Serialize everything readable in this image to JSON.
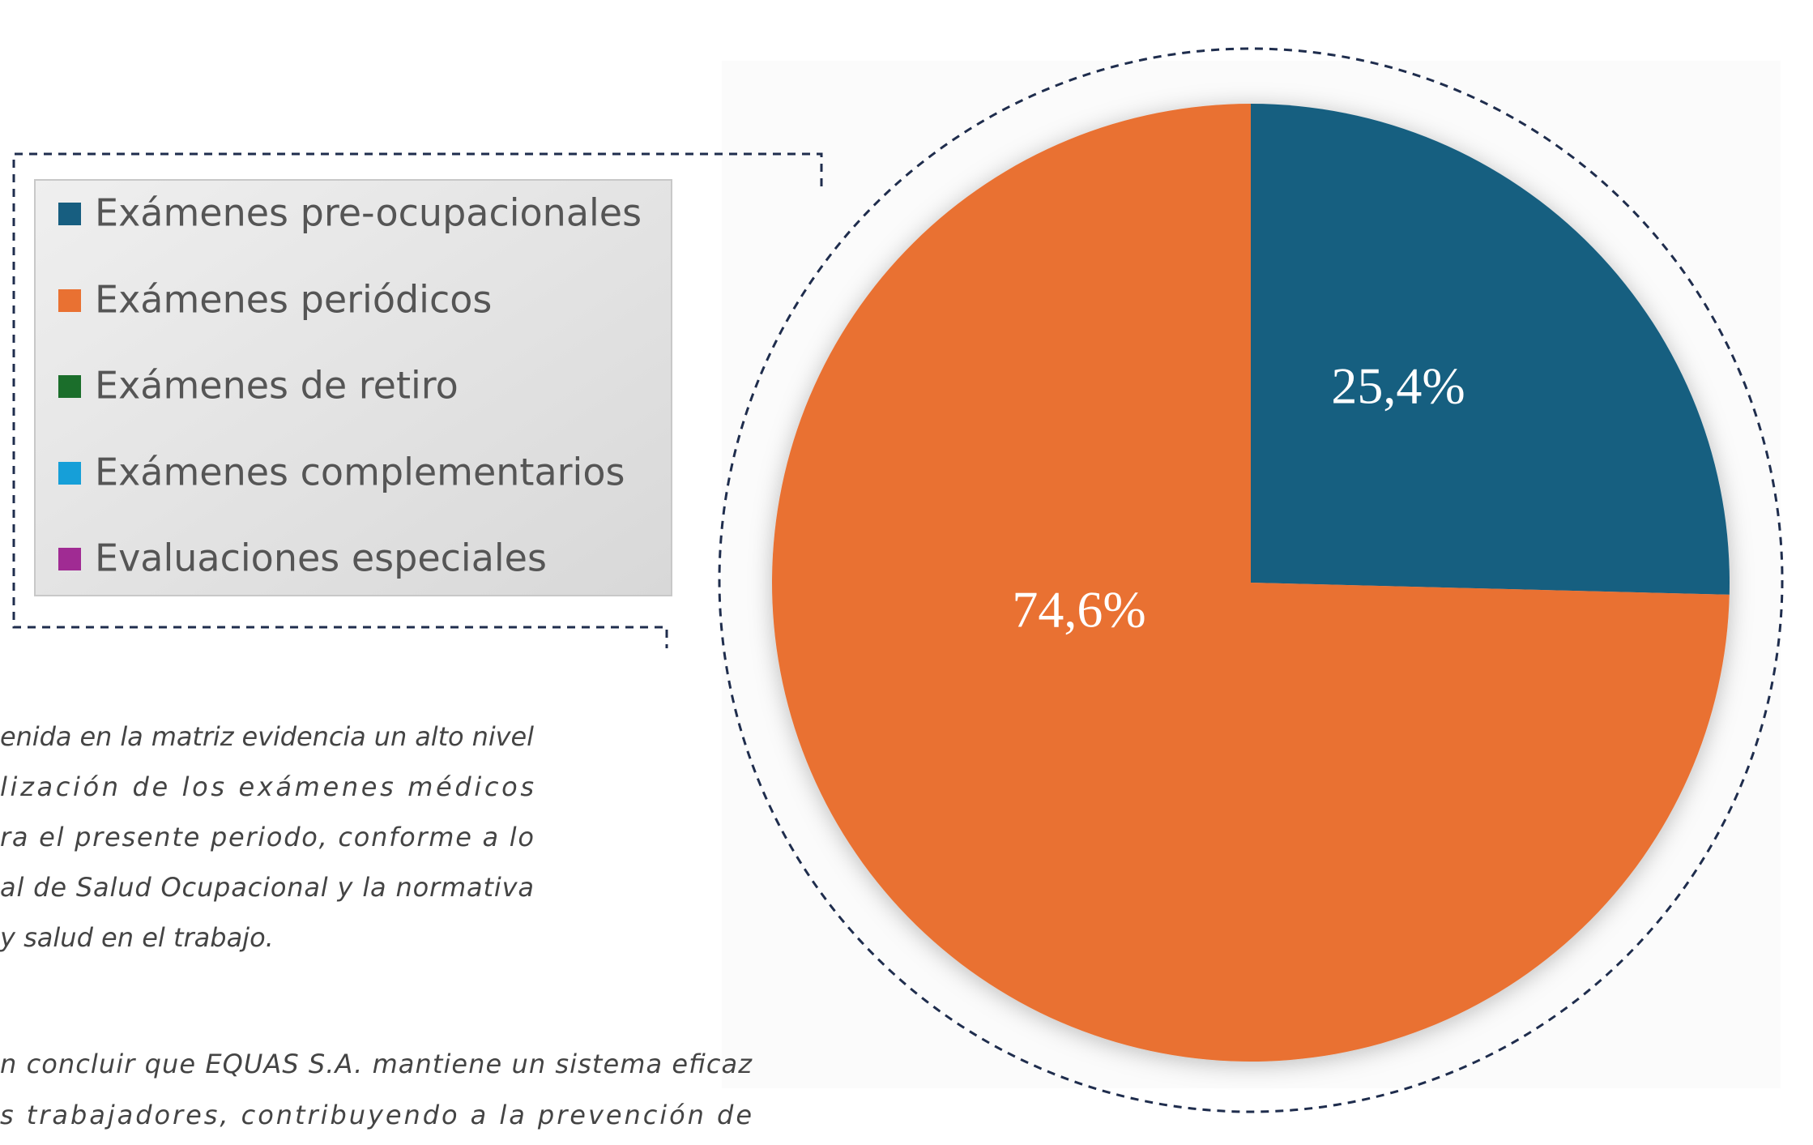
{
  "chart_data": {
    "type": "pie",
    "categories": [
      "Exámenes pre-ocupacionales",
      "Exámenes periódicos",
      "Exámenes de retiro",
      "Exámenes complementarios",
      "Evaluaciones especiales"
    ],
    "values": [
      25.4,
      74.6,
      0,
      0,
      0
    ],
    "value_labels": [
      "25,4%",
      "74,6%",
      null,
      null,
      null
    ],
    "colors": [
      "#175e80",
      "#e97132",
      "#1b6e2b",
      "#169fd8",
      "#a02b93"
    ],
    "legend": "left"
  },
  "body_text": {
    "paragraphs": [
      {
        "lines": [
          "enida en la matriz evidencia un alto nivel",
          "lización de los exámenes médicos",
          "ra el presente periodo, conforme a lo",
          "al de Salud Ocupacional y la normativa",
          "y salud en el trabajo."
        ]
      },
      {
        "lines": [
          "n concluir que EQUAS S.A. mantiene un sistema eficaz",
          "s trabajadores, contribuyendo a la prevención de"
        ]
      }
    ]
  }
}
